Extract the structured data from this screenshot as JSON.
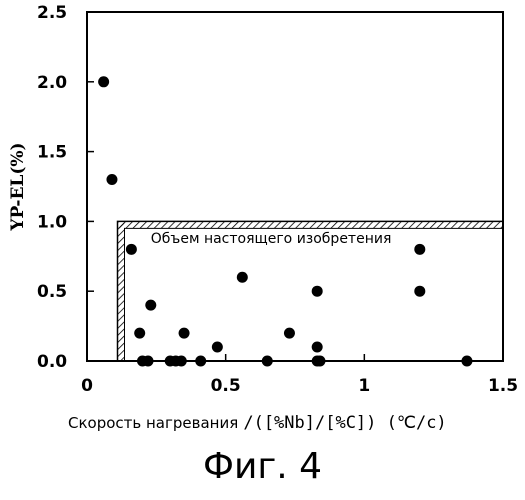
{
  "chart_data": {
    "type": "scatter",
    "ylabel": "YP-EL(%)",
    "xlabel_prefix": "Скорость нагревания",
    "xlabel_formula": "/([%Nb]/[%C]) (℃/c)",
    "xlim": [
      0,
      1.5
    ],
    "ylim": [
      0,
      2.5
    ],
    "x_ticks": [
      0,
      0.5,
      1,
      1.5
    ],
    "x_tick_labels": [
      "0",
      "0.5",
      "1",
      "1.5"
    ],
    "y_ticks": [
      0,
      0.5,
      1,
      1.5,
      2,
      2.5
    ],
    "y_tick_labels": [
      "0.0",
      "0.5",
      "1.0",
      "1.5",
      "2.0",
      "2.5"
    ],
    "grid": false,
    "region": {
      "label": "Объем настоящего изобретения",
      "x_min": 0.11,
      "x_max": 1.5,
      "y_min": 0,
      "y_max": 1.0,
      "hatched_edges": [
        "left",
        "top"
      ]
    },
    "points": [
      {
        "x": 0.06,
        "y": 2.0
      },
      {
        "x": 0.09,
        "y": 1.3
      },
      {
        "x": 0.16,
        "y": 0.8
      },
      {
        "x": 0.19,
        "y": 0.2
      },
      {
        "x": 0.2,
        "y": 0.0
      },
      {
        "x": 0.22,
        "y": 0.0
      },
      {
        "x": 0.23,
        "y": 0.4
      },
      {
        "x": 0.3,
        "y": 0.0
      },
      {
        "x": 0.32,
        "y": 0.0
      },
      {
        "x": 0.34,
        "y": 0.0
      },
      {
        "x": 0.35,
        "y": 0.2
      },
      {
        "x": 0.41,
        "y": 0.0
      },
      {
        "x": 0.47,
        "y": 0.1
      },
      {
        "x": 0.56,
        "y": 0.6
      },
      {
        "x": 0.65,
        "y": 0.0
      },
      {
        "x": 0.73,
        "y": 0.2
      },
      {
        "x": 0.83,
        "y": 0.5
      },
      {
        "x": 0.83,
        "y": 0.1
      },
      {
        "x": 0.83,
        "y": 0.0
      },
      {
        "x": 0.84,
        "y": 0.0
      },
      {
        "x": 1.2,
        "y": 0.8
      },
      {
        "x": 1.2,
        "y": 0.5
      },
      {
        "x": 1.37,
        "y": 0.0
      }
    ]
  },
  "caption": "Фиг. 4"
}
